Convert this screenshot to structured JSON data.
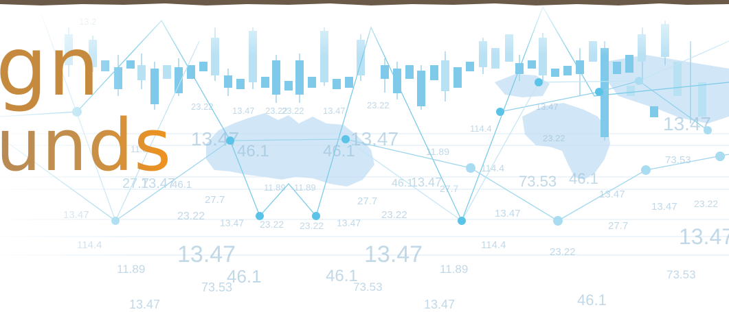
{
  "headline": {
    "line1": "gn",
    "line2": "unds"
  },
  "colors": {
    "border": "#6b5a48",
    "headline_top": "#c58a3d",
    "headline_accent": "#f0921c",
    "chart_blue": "#5cc3e8",
    "map_blue": "#c9e2f5"
  }
}
